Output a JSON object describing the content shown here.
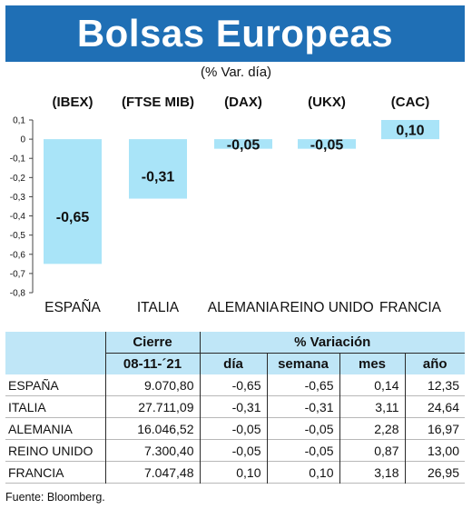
{
  "header": {
    "title": "Bolsas Europeas",
    "subtitle": "(% Var. día)"
  },
  "chart_data": {
    "type": "bar",
    "title": "Bolsas Europeas",
    "subtitle": "(% Var. día)",
    "indices": [
      "(IBEX)",
      "(FTSE MIB)",
      "(DAX)",
      "(UKX)",
      "(CAC)"
    ],
    "categories": [
      "ESPAÑA",
      "ITALIA",
      "ALEMANIA",
      "REINO UNIDO",
      "FRANCIA"
    ],
    "values": [
      -0.65,
      -0.31,
      -0.05,
      -0.05,
      0.1
    ],
    "value_labels": [
      "-0,65",
      "-0,31",
      "-0,05",
      "-0,05",
      "0,10"
    ],
    "ylim": [
      -0.8,
      0.1
    ],
    "yticks": [
      0.1,
      0,
      -0.1,
      -0.2,
      -0.3,
      -0.4,
      -0.5,
      -0.6,
      -0.7,
      -0.8
    ],
    "ytick_labels": [
      "0,1",
      "0",
      "-0,1",
      "-0,2",
      "-0,3",
      "-0,4",
      "-0,5",
      "-0,6",
      "-0,7",
      "-0,8"
    ],
    "bar_color": "#a9e4f8",
    "grid": false
  },
  "table": {
    "col_group_cierre": "Cierre",
    "col_group_variacion": "% Variación",
    "columns": [
      "08-11-´21",
      "día",
      "semana",
      "mes",
      "año"
    ],
    "rows": [
      {
        "country": "ESPAÑA",
        "cierre": "9.070,80",
        "dia": "-0,65",
        "semana": "-0,65",
        "mes": "0,14",
        "ano": "12,35"
      },
      {
        "country": "ITALIA",
        "cierre": "27.711,09",
        "dia": "-0,31",
        "semana": "-0,31",
        "mes": "3,11",
        "ano": "24,64"
      },
      {
        "country": "ALEMANIA",
        "cierre": "16.046,52",
        "dia": "-0,05",
        "semana": "-0,05",
        "mes": "2,28",
        "ano": "16,97"
      },
      {
        "country": "REINO UNIDO",
        "cierre": "7.300,40",
        "dia": "-0,05",
        "semana": "-0,05",
        "mes": "0,87",
        "ano": "13,00"
      },
      {
        "country": "FRANCIA",
        "cierre": "7.047,48",
        "dia": "0,10",
        "semana": "0,10",
        "mes": "3,18",
        "ano": "26,95"
      }
    ]
  },
  "footer": {
    "source": "Fuente: Bloomberg."
  },
  "colors": {
    "banner": "#1f6fb5",
    "bar": "#a9e4f8",
    "header_fill": "#bfe6f7"
  }
}
